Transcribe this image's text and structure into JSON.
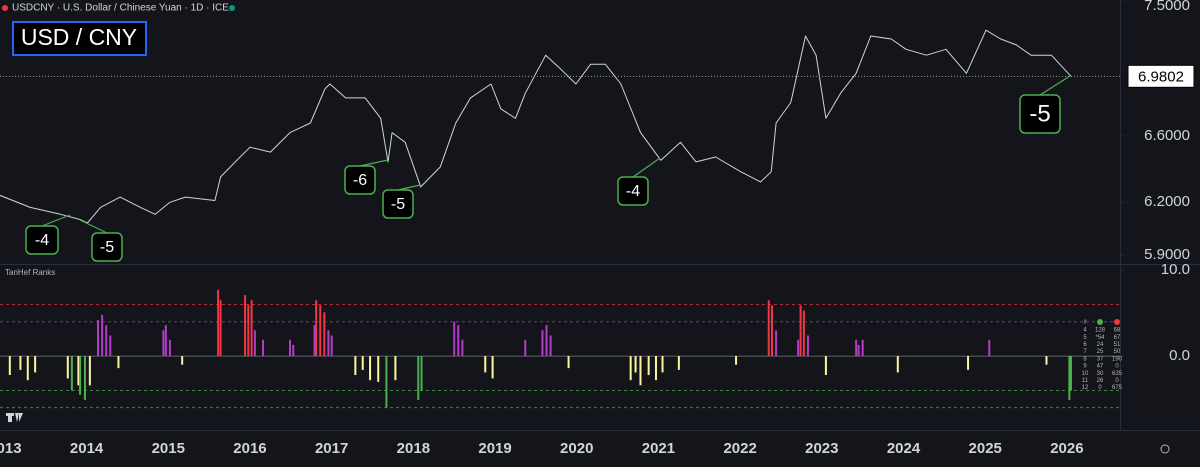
{
  "chart_data": [
    {
      "type": "line",
      "symbol": "USDCNY · U.S. Dollar / Chinese Yuan · 1D · ICE",
      "title": "USD / CNY",
      "log_scale": true,
      "x": [
        2012.94,
        2013.31,
        2013.68,
        2013.92,
        2014.01,
        2014.17,
        2014.41,
        2014.66,
        2014.84,
        2015.02,
        2015.21,
        2015.57,
        2015.64,
        2015.82,
        2016.0,
        2016.25,
        2016.49,
        2016.74,
        2016.92,
        2016.98,
        2017.17,
        2017.41,
        2017.6,
        2017.69,
        2017.74,
        2017.9,
        2018.09,
        2018.33,
        2018.52,
        2018.7,
        2018.95,
        2019.07,
        2019.25,
        2019.37,
        2019.62,
        2019.8,
        2019.99,
        2020.17,
        2020.35,
        2020.54,
        2020.78,
        2021.03,
        2021.27,
        2021.46,
        2021.7,
        2022.01,
        2022.25,
        2022.38,
        2022.44,
        2022.62,
        2022.8,
        2022.93,
        2023.05,
        2023.23,
        2023.42,
        2023.6,
        2023.85,
        2024.03,
        2024.28,
        2024.52,
        2024.77,
        2025.01,
        2025.19,
        2025.38,
        2025.56,
        2025.81,
        2026.05
      ],
      "series": [
        {
          "name": "USDCNY",
          "color": "#d1d4dc",
          "values": [
            6.24,
            6.17,
            6.13,
            6.1,
            6.08,
            6.17,
            6.23,
            6.17,
            6.13,
            6.2,
            6.23,
            6.21,
            6.35,
            6.44,
            6.53,
            6.5,
            6.62,
            6.68,
            6.9,
            6.93,
            6.84,
            6.84,
            6.71,
            6.44,
            6.62,
            6.56,
            6.29,
            6.41,
            6.68,
            6.84,
            6.93,
            6.77,
            6.71,
            6.87,
            7.12,
            7.03,
            6.93,
            7.06,
            7.06,
            6.93,
            6.62,
            6.45,
            6.56,
            6.44,
            6.47,
            6.38,
            6.32,
            6.38,
            6.68,
            6.81,
            7.25,
            7.12,
            6.71,
            6.87,
            7.0,
            7.25,
            7.23,
            7.16,
            7.12,
            7.16,
            7.0,
            7.29,
            7.23,
            7.19,
            7.12,
            7.12,
            6.9802
          ]
        }
      ],
      "xlim": [
        2012.94,
        2026.65
      ],
      "xticks": [
        2013,
        2014,
        2015,
        2016,
        2017,
        2018,
        2019,
        2020,
        2021,
        2022,
        2023,
        2024,
        2025,
        2026
      ],
      "ylim": [
        5.85,
        7.5
      ],
      "yticks": [
        {
          "value": 7.5,
          "label": "7.5000"
        },
        {
          "value": 6.6,
          "label": "6.6000"
        },
        {
          "value": 6.2,
          "label": "6.2000"
        },
        {
          "value": 5.9,
          "label": "5.9000"
        }
      ],
      "annotations": [
        "-4",
        "-5",
        "-6",
        "-5",
        "-4",
        "-5"
      ]
    },
    {
      "type": "bar",
      "title": "TanHef Ranks",
      "x": [
        2013.06,
        2013.19,
        2013.28,
        2013.37,
        2013.77,
        2013.82,
        2013.9,
        2013.92,
        2013.98,
        2014.04,
        2014.14,
        2014.19,
        2014.24,
        2014.29,
        2014.39,
        2014.94,
        2014.97,
        2015.02,
        2015.17,
        2015.61,
        2015.64,
        2015.94,
        2015.98,
        2016.02,
        2016.06,
        2016.16,
        2016.49,
        2016.53,
        2016.79,
        2016.81,
        2016.86,
        2016.91,
        2016.96,
        2017.0,
        2017.29,
        2017.38,
        2017.47,
        2017.57,
        2017.67,
        2017.78,
        2018.06,
        2018.1,
        2018.5,
        2018.55,
        2018.6,
        2018.88,
        2018.97,
        2019.37,
        2019.58,
        2019.63,
        2019.68,
        2019.9,
        2020.66,
        2020.72,
        2020.78,
        2020.88,
        2020.97,
        2021.05,
        2021.25,
        2021.95,
        2022.35,
        2022.39,
        2022.44,
        2022.71,
        2022.74,
        2022.78,
        2022.83,
        2023.05,
        2023.42,
        2023.45,
        2023.5,
        2023.93,
        2024.79,
        2025.05,
        2025.75,
        2026.03,
        2026.05
      ],
      "values": [
        -2.2,
        -1.6,
        -2.8,
        -1.9,
        -2.6,
        -4.0,
        -3.4,
        -4.5,
        -5.1,
        -3.4,
        4.2,
        4.8,
        3.6,
        2.4,
        -1.4,
        3.0,
        3.6,
        1.9,
        -1.0,
        7.7,
        6.5,
        7.1,
        5.9,
        6.5,
        3.0,
        1.9,
        1.9,
        1.3,
        3.6,
        6.5,
        5.9,
        5.1,
        3.0,
        2.4,
        -2.2,
        -1.6,
        -2.8,
        -3.0,
        -6.0,
        -2.8,
        -5.1,
        -4.0,
        4.0,
        3.6,
        1.9,
        -1.9,
        -2.6,
        1.9,
        3.0,
        3.6,
        2.4,
        -1.4,
        -2.8,
        -1.9,
        -3.4,
        -2.2,
        -2.8,
        -1.9,
        -1.6,
        -1.0,
        6.5,
        5.9,
        3.0,
        1.9,
        5.9,
        5.3,
        2.4,
        -2.2,
        1.9,
        1.3,
        1.9,
        -1.9,
        -1.6,
        1.9,
        -1.0,
        -5.1,
        -4.0
      ],
      "colors": [
        "#fff59d",
        "#fff59d",
        "#fff59d",
        "#fff59d",
        "#fff59d",
        "#4caf50",
        "#fff59d",
        "#4caf50",
        "#4caf50",
        "#fff59d",
        "#b23bc8",
        "#b23bc8",
        "#b23bc8",
        "#b23bc8",
        "#fff59d",
        "#b23bc8",
        "#b23bc8",
        "#b23bc8",
        "#fff59d",
        "#f23645",
        "#f23645",
        "#f23645",
        "#f23645",
        "#f23645",
        "#b23bc8",
        "#b23bc8",
        "#b23bc8",
        "#b23bc8",
        "#b23bc8",
        "#f23645",
        "#f23645",
        "#f23645",
        "#b23bc8",
        "#b23bc8",
        "#fff59d",
        "#fff59d",
        "#fff59d",
        "#fff59d",
        "#4caf50",
        "#fff59d",
        "#4caf50",
        "#4caf50",
        "#b23bc8",
        "#b23bc8",
        "#b23bc8",
        "#fff59d",
        "#fff59d",
        "#b23bc8",
        "#b23bc8",
        "#b23bc8",
        "#b23bc8",
        "#fff59d",
        "#fff59d",
        "#fff59d",
        "#fff59d",
        "#fff59d",
        "#fff59d",
        "#fff59d",
        "#fff59d",
        "#fff59d",
        "#f23645",
        "#f23645",
        "#b23bc8",
        "#b23bc8",
        "#f23645",
        "#f23645",
        "#b23bc8",
        "#fff59d",
        "#b23bc8",
        "#b23bc8",
        "#b23bc8",
        "#fff59d",
        "#fff59d",
        "#b23bc8",
        "#fff59d",
        "#4caf50",
        "#4caf50"
      ],
      "ylim": [
        -8.6,
        10.6
      ],
      "yticks": [
        {
          "value": 10,
          "label": "10.0"
        },
        {
          "value": 0,
          "label": "0.0"
        }
      ],
      "levels": [
        {
          "value": 6,
          "color": "#f23645"
        },
        {
          "value": 4,
          "color": "#b23bc8"
        },
        {
          "value": -4,
          "color": "#4caf50"
        },
        {
          "value": -6,
          "color": "#4caf50"
        }
      ],
      "table": {
        "header": [
          "#"
        ],
        "rows": [
          [
            "4",
            "128",
            "68"
          ],
          [
            "5",
            "*54",
            "67"
          ],
          [
            "6",
            "24",
            "51"
          ],
          [
            "7",
            "25",
            "50"
          ],
          [
            "8",
            "37",
            "190"
          ],
          [
            "9",
            "47",
            "0"
          ],
          [
            "10",
            "30",
            "635"
          ],
          [
            "11",
            "26",
            "0"
          ],
          [
            "12",
            "0",
            "675"
          ]
        ]
      }
    }
  ]
}
